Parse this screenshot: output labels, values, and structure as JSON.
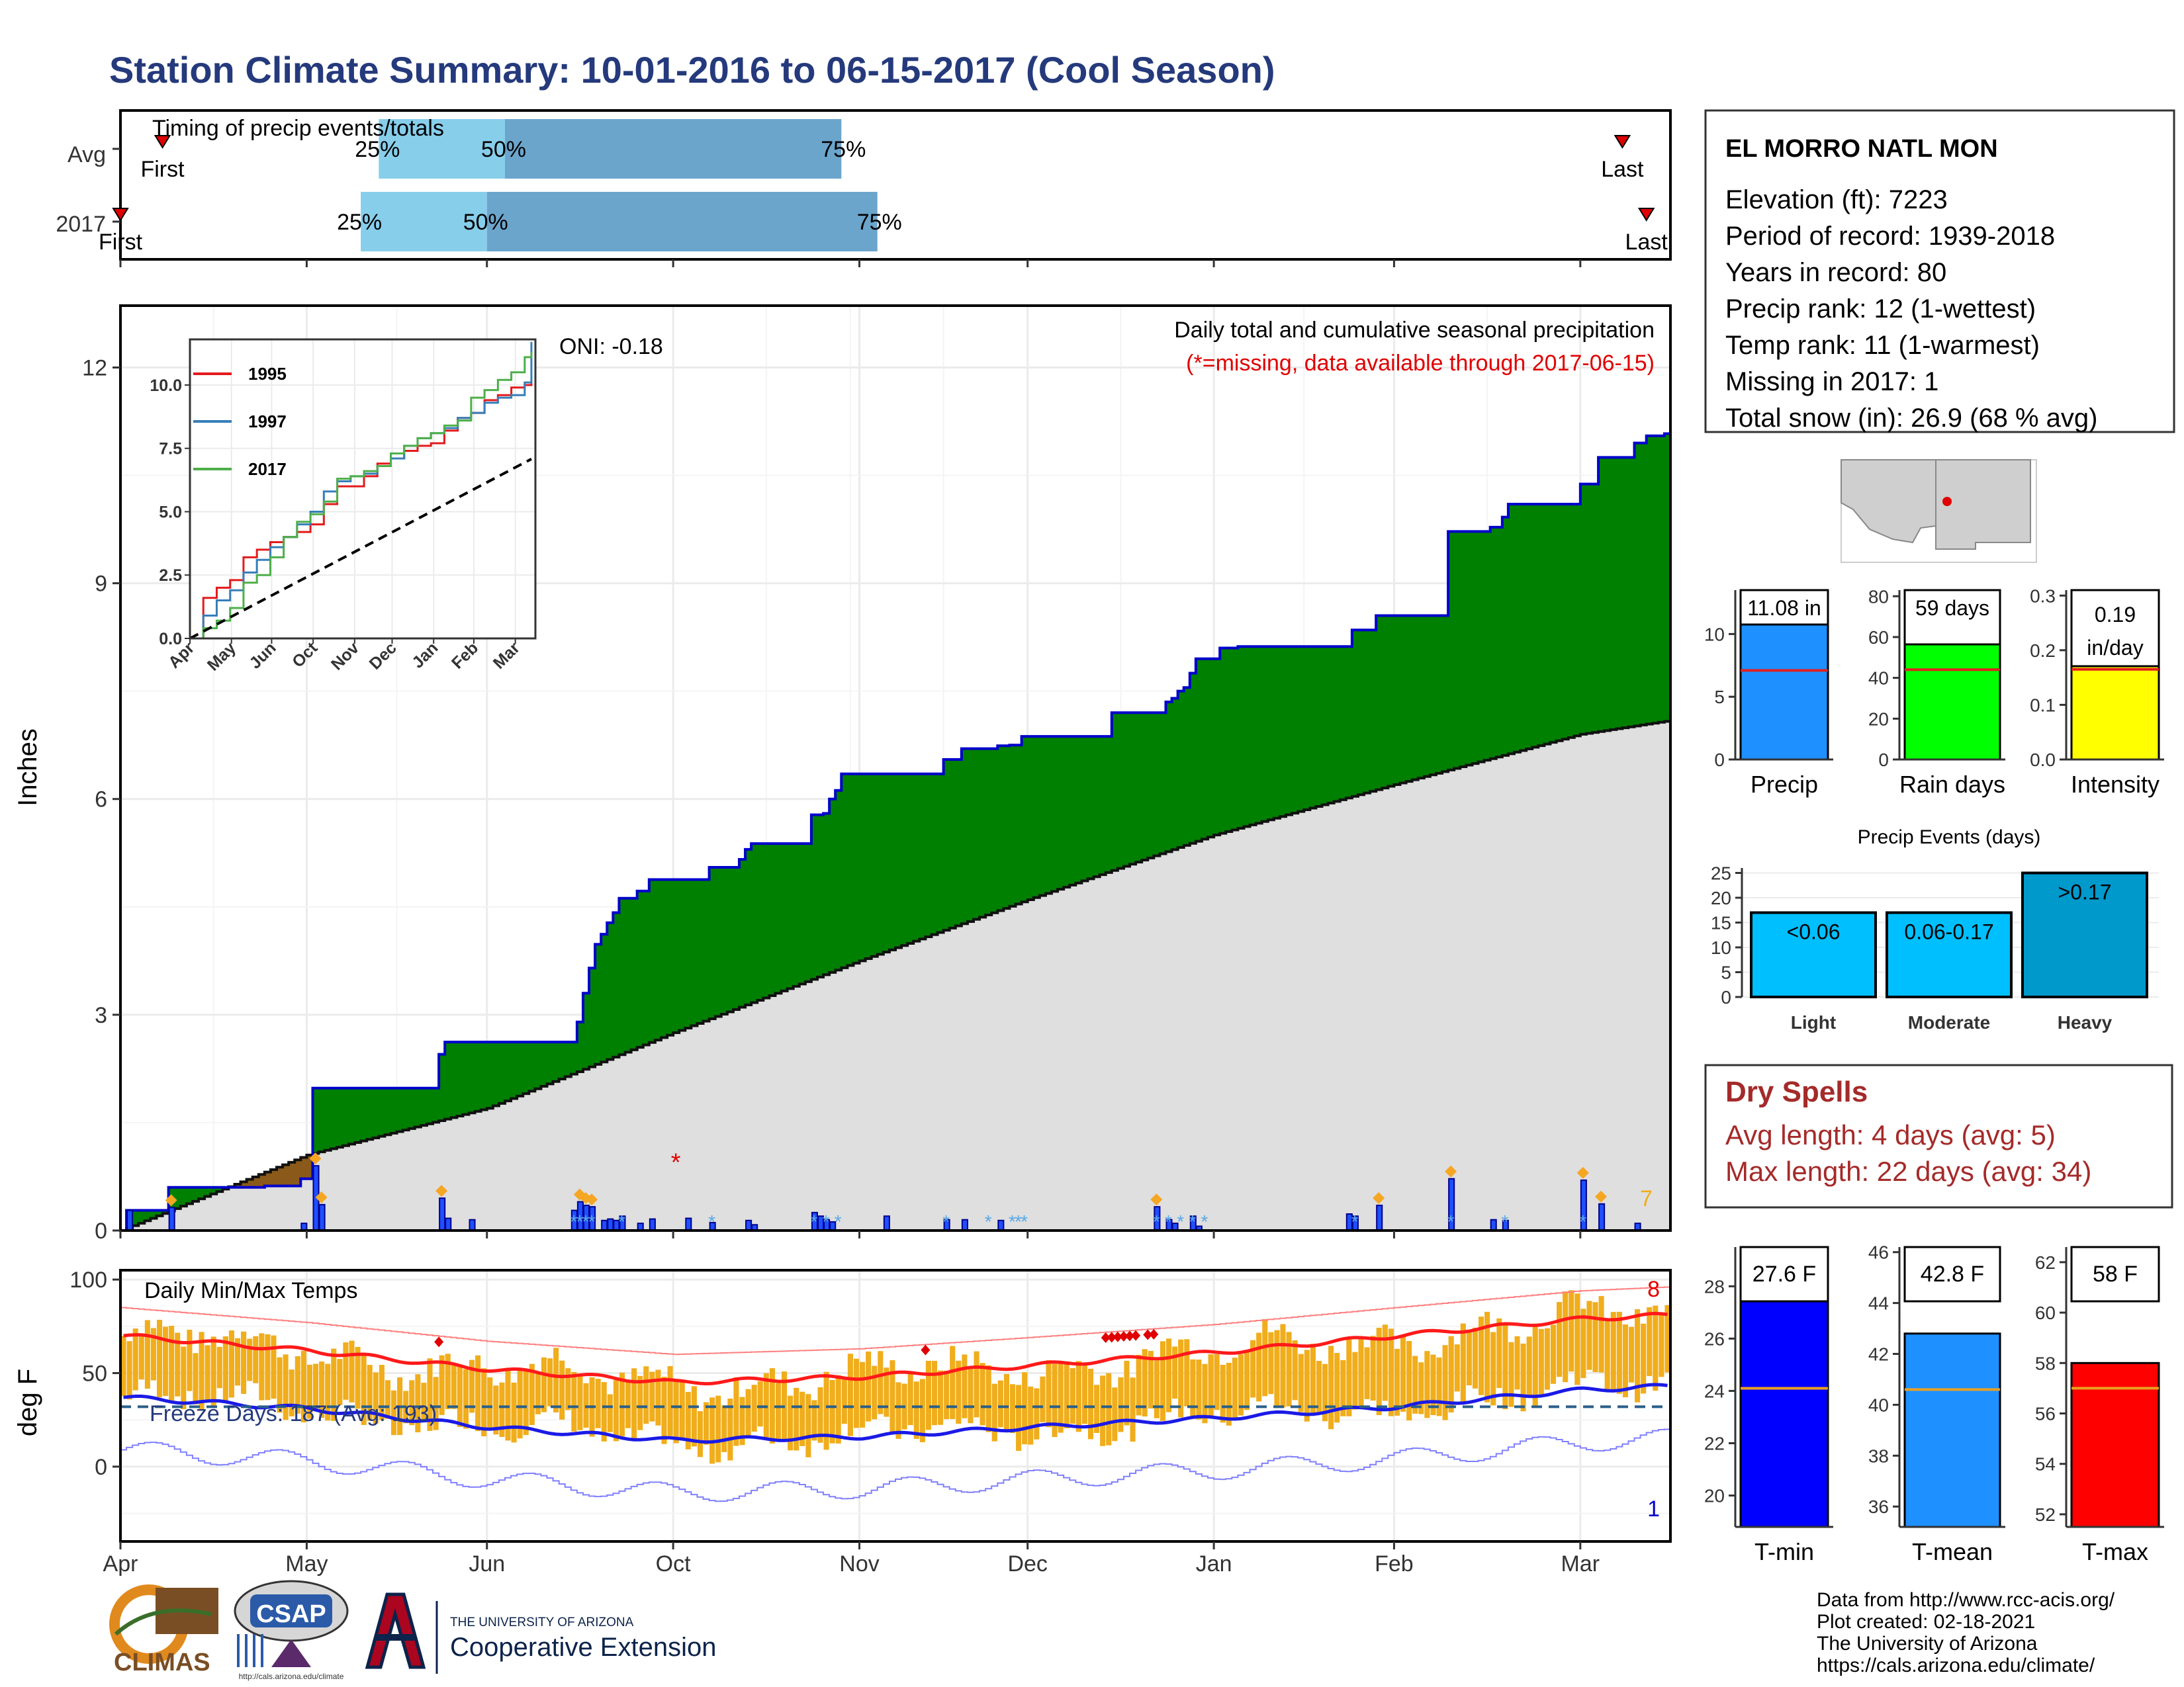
{
  "title": "Station Climate Summary: 10-01-2016 to 06-15-2017 (Cool Season)",
  "colors": {
    "title": "#253a7c",
    "green": "#008000",
    "blue": "#0000cc",
    "gray": "#dfdfdf",
    "brown": "#8b5a1a",
    "orange": "#f0ad1c",
    "dryspell": "#a52a2a",
    "lightblue": "#87ceeb",
    "midblue": "#6ba5cc"
  },
  "timing": {
    "label": "Timing of precip events/totals",
    "rows": [
      {
        "name": "Avg",
        "first_label": "First",
        "last_label": "Last",
        "first": "10-08",
        "p25": "11-13",
        "p50": "12-04",
        "p75": "01-29",
        "last": "06-08"
      },
      {
        "name": "2017",
        "first_label": "First",
        "last_label": "Last",
        "first": "10-01",
        "p25": "11-10",
        "p50": "12-01",
        "p75": "02-04",
        "last": "06-12"
      }
    ],
    "pct_labels": [
      "25%",
      "50%",
      "75%"
    ]
  },
  "precip_panel": {
    "ylabel": "Inches",
    "yticks": [
      0,
      3,
      6,
      9,
      12
    ],
    "ylim": [
      0,
      12
    ],
    "note1": "Daily total and cumulative seasonal precipitation",
    "note2": "(*=missing, data available through 2017-06-15)",
    "count_label": "7",
    "oni_label": "ONI: -0.18"
  },
  "chart_data": [
    {
      "type": "area",
      "title": "Daily total and cumulative seasonal precipitation",
      "ylabel": "Inches",
      "ylim": [
        0,
        12
      ],
      "series": [
        {
          "name": "2017",
          "x": [
            "10-01",
            "10-02",
            "10-08",
            "10-09",
            "10-25",
            "10-31",
            "11-01",
            "11-02",
            "11-22",
            "11-23",
            "11-24",
            "12-15",
            "12-16",
            "12-17",
            "12-18",
            "12-19",
            "12-20",
            "12-21",
            "12-22",
            "12-23",
            "12-26",
            "12-28",
            "12-30",
            "01-01",
            "01-03",
            "01-07",
            "01-12",
            "01-13",
            "01-14",
            "01-24",
            "01-26",
            "01-27",
            "01-28",
            "01-29",
            "02-05",
            "02-15",
            "02-18",
            "02-24",
            "02-26",
            "02-28",
            "03-15",
            "03-22",
            "03-24",
            "03-25",
            "03-26",
            "03-27",
            "03-28",
            "03-29",
            "04-02",
            "04-03",
            "04-05",
            "04-23",
            "04-24",
            "04-28",
            "05-09",
            "05-10",
            "05-12",
            "05-17",
            "05-19",
            "05-20",
            "05-31",
            "06-01",
            "06-04",
            "06-10",
            "06-12",
            "06-15"
          ],
          "values": [
            0.0,
            0.28,
            0.28,
            0.6,
            0.62,
            0.72,
            0.72,
            1.98,
            1.98,
            2.45,
            2.62,
            2.62,
            2.9,
            3.3,
            3.65,
            3.98,
            4.12,
            4.28,
            4.42,
            4.62,
            4.72,
            4.88,
            4.88,
            4.88,
            4.88,
            5.05,
            5.16,
            5.3,
            5.38,
            5.78,
            5.8,
            6.0,
            6.12,
            6.35,
            6.35,
            6.55,
            6.7,
            6.74,
            6.75,
            6.87,
            7.2,
            7.2,
            7.35,
            7.4,
            7.5,
            7.55,
            7.75,
            7.95,
            8.1,
            8.1,
            8.12,
            8.12,
            8.35,
            8.55,
            8.55,
            9.72,
            9.72,
            9.78,
            9.92,
            10.1,
            10.1,
            10.38,
            10.75,
            10.95,
            11.05,
            11.08
          ]
        },
        {
          "name": "Avg",
          "x": [
            "10-01",
            "11-01",
            "12-01",
            "01-01",
            "02-01",
            "03-01",
            "04-01",
            "05-01",
            "06-01",
            "06-15"
          ],
          "values": [
            0.0,
            1.05,
            1.7,
            2.75,
            3.75,
            4.6,
            5.5,
            6.2,
            6.9,
            7.08
          ]
        }
      ],
      "daily_events": [
        {
          "x": "10-02",
          "value": 0.28
        },
        {
          "x": "10-09",
          "value": 0.32
        },
        {
          "x": "10-31",
          "value": 0.1
        },
        {
          "x": "11-02",
          "value": 0.9
        },
        {
          "x": "11-03",
          "value": 0.36
        },
        {
          "x": "11-23",
          "value": 0.45
        },
        {
          "x": "11-24",
          "value": 0.17
        },
        {
          "x": "11-28",
          "value": 0.15
        },
        {
          "x": "12-15",
          "value": 0.28
        },
        {
          "x": "12-16",
          "value": 0.4
        },
        {
          "x": "12-17",
          "value": 0.35
        },
        {
          "x": "12-18",
          "value": 0.33
        },
        {
          "x": "12-20",
          "value": 0.14
        },
        {
          "x": "12-21",
          "value": 0.16
        },
        {
          "x": "12-22",
          "value": 0.14
        },
        {
          "x": "12-23",
          "value": 0.2
        },
        {
          "x": "12-26",
          "value": 0.1
        },
        {
          "x": "12-28",
          "value": 0.16
        },
        {
          "x": "01-03",
          "value": 0.17
        },
        {
          "x": "01-07",
          "value": 0.11
        },
        {
          "x": "01-13",
          "value": 0.14
        },
        {
          "x": "01-14",
          "value": 0.08
        },
        {
          "x": "01-24",
          "value": 0.25
        },
        {
          "x": "01-25",
          "value": 0.2
        },
        {
          "x": "01-26",
          "value": 0.15
        },
        {
          "x": "01-27",
          "value": 0.12
        },
        {
          "x": "02-05",
          "value": 0.2
        },
        {
          "x": "02-15",
          "value": 0.15
        },
        {
          "x": "02-18",
          "value": 0.15
        },
        {
          "x": "02-24",
          "value": 0.14
        },
        {
          "x": "03-22",
          "value": 0.33
        },
        {
          "x": "03-24",
          "value": 0.15
        },
        {
          "x": "03-25",
          "value": 0.1
        },
        {
          "x": "03-28",
          "value": 0.2
        },
        {
          "x": "03-29",
          "value": 0.06
        },
        {
          "x": "04-23",
          "value": 0.23
        },
        {
          "x": "04-24",
          "value": 0.2
        },
        {
          "x": "04-28",
          "value": 0.35
        },
        {
          "x": "05-10",
          "value": 0.72
        },
        {
          "x": "05-17",
          "value": 0.15
        },
        {
          "x": "05-19",
          "value": 0.14
        },
        {
          "x": "06-01",
          "value": 0.7
        },
        {
          "x": "06-04",
          "value": 0.37
        },
        {
          "x": "06-10",
          "value": 0.1
        }
      ],
      "missing": [
        {
          "x": "01-01",
          "value": 1.0
        }
      ]
    },
    {
      "type": "line",
      "title": "",
      "xlabels": [
        "Oct",
        "Nov",
        "Dec",
        "Jan",
        "Feb",
        "Mar",
        "Apr",
        "May",
        "Jun"
      ],
      "yticks": [
        "0.0",
        "2.5",
        "5.0",
        "7.5",
        "10.0"
      ],
      "ylim": [
        0,
        11.5
      ],
      "series": [
        {
          "name": "1995",
          "x": [
            0,
            10,
            20,
            30,
            40,
            50,
            60,
            70,
            80,
            90,
            100,
            110,
            120,
            130,
            140,
            150,
            160,
            170,
            180,
            190,
            200,
            210,
            220,
            230,
            240,
            250,
            255
          ],
          "values": [
            0.0,
            1.6,
            2.0,
            2.3,
            3.2,
            3.5,
            3.8,
            4.0,
            4.2,
            4.5,
            5.3,
            6.0,
            6.0,
            6.4,
            6.9,
            7.1,
            7.4,
            7.6,
            7.7,
            8.2,
            8.7,
            8.9,
            9.4,
            9.6,
            9.9,
            10.0,
            10.2
          ]
        },
        {
          "name": "1997",
          "x": [
            0,
            10,
            20,
            30,
            40,
            50,
            60,
            70,
            80,
            90,
            100,
            110,
            120,
            130,
            140,
            150,
            160,
            170,
            180,
            190,
            200,
            210,
            220,
            230,
            240,
            250,
            255
          ],
          "values": [
            0.0,
            0.9,
            1.5,
            1.9,
            2.6,
            3.1,
            3.6,
            4.0,
            4.5,
            5.0,
            5.8,
            6.2,
            6.4,
            6.5,
            6.8,
            7.1,
            7.6,
            7.9,
            8.1,
            8.3,
            8.7,
            8.9,
            9.3,
            9.5,
            9.6,
            10.1,
            11.7
          ]
        },
        {
          "name": "2017",
          "x": [
            0,
            10,
            20,
            30,
            40,
            50,
            60,
            70,
            80,
            90,
            100,
            110,
            120,
            130,
            140,
            150,
            160,
            170,
            180,
            190,
            200,
            210,
            220,
            230,
            240,
            250,
            255
          ],
          "values": [
            0.0,
            0.4,
            0.7,
            1.2,
            2.2,
            2.5,
            3.2,
            4.0,
            4.6,
            4.9,
            5.4,
            6.3,
            6.4,
            6.6,
            6.8,
            7.3,
            7.6,
            7.9,
            8.1,
            8.4,
            8.6,
            9.5,
            9.8,
            10.2,
            10.5,
            11.1,
            11.3
          ]
        },
        {
          "name": "Avg",
          "x": [
            0,
            255
          ],
          "values": [
            0.0,
            7.08
          ]
        }
      ]
    },
    {
      "type": "bar",
      "title": "Daily Min/Max Temps",
      "ylabel": "deg F",
      "yticks": [
        0,
        50,
        100
      ],
      "ylim": [
        -40,
        105
      ],
      "series": [
        {
          "name": "Tmax avg",
          "x": [
            "10-01",
            "11-01",
            "12-01",
            "01-01",
            "02-01",
            "03-01",
            "04-01",
            "05-01",
            "06-01",
            "06-15"
          ],
          "values": [
            70,
            62,
            52,
            45,
            48,
            54,
            61,
            70,
            79,
            81
          ]
        },
        {
          "name": "Tmin avg",
          "x": [
            "10-01",
            "11-01",
            "12-01",
            "01-01",
            "02-01",
            "03-01",
            "04-01",
            "05-01",
            "06-01",
            "06-15"
          ],
          "values": [
            37,
            31,
            21,
            14,
            16,
            21,
            26,
            32,
            41,
            43
          ]
        }
      ],
      "freeze_line": 32,
      "freeze_label": "Freeze Days: 187 (Avg: 193)",
      "record_high_count": "8",
      "record_low_count": "1"
    },
    {
      "type": "bar",
      "categories": [
        "Precip"
      ],
      "values": [
        11.08
      ],
      "avg": 7.1,
      "label": "11.08 in",
      "yticks": [
        0,
        5,
        10
      ],
      "ylim": [
        0,
        13.5
      ]
    },
    {
      "type": "bar",
      "categories": [
        "Rain days"
      ],
      "values": [
        59
      ],
      "avg": 44,
      "label": "59 days",
      "yticks": [
        0,
        20,
        40,
        60,
        80
      ],
      "ylim": [
        0,
        83
      ]
    },
    {
      "type": "bar",
      "categories": [
        "Intensity"
      ],
      "values": [
        0.19
      ],
      "avg": 0.165,
      "label": "0.19 in/day",
      "yticks": [
        "0.0",
        "0.1",
        "0.2",
        "0.3"
      ],
      "ylim": [
        0,
        0.31
      ]
    },
    {
      "type": "bar",
      "title": "Precip Events (days)",
      "categories": [
        "Light",
        "Moderate",
        "Heavy"
      ],
      "values": [
        17,
        17,
        25
      ],
      "labels": [
        "<0.06",
        "0.06-0.17",
        ">0.17"
      ],
      "yticks": [
        0,
        5,
        10,
        15,
        20,
        25
      ],
      "ylim": [
        0,
        26
      ]
    },
    {
      "type": "bar",
      "categories": [
        "T-min"
      ],
      "values": [
        27.6
      ],
      "avg": 24.1,
      "label": "27.6 F",
      "yticks": [
        20,
        22,
        24,
        26,
        28
      ],
      "ylim": [
        18.8,
        29.5
      ]
    },
    {
      "type": "bar",
      "categories": [
        "T-mean"
      ],
      "values": [
        42.8
      ],
      "avg": 40.6,
      "label": "42.8 F",
      "yticks": [
        36,
        38,
        40,
        42,
        44,
        46
      ],
      "ylim": [
        35.2,
        46.2
      ]
    },
    {
      "type": "bar",
      "categories": [
        "T-max"
      ],
      "values": [
        58
      ],
      "avg": 57,
      "label": "58 F",
      "yticks": [
        52,
        54,
        56,
        58,
        60,
        62
      ],
      "ylim": [
        51.5,
        62.6
      ]
    }
  ],
  "month_labels": [
    "Oct",
    "Nov",
    "Dec",
    "Jan",
    "Feb",
    "Mar",
    "Apr",
    "May",
    "Jun"
  ],
  "station": {
    "name": "EL MORRO NATL MON",
    "lines": [
      "Elevation (ft): 7223",
      "Period of record: 1939-2018",
      "Years in record: 80",
      "Precip rank: 12 (1-wettest)",
      "Temp rank: 11 (1-warmest)",
      "Missing in 2017: 1",
      "Total snow (in): 26.9 (68 % avg)"
    ]
  },
  "dry_spells": {
    "title": "Dry Spells",
    "avg": "Avg length: 4 days (avg: 5)",
    "max": "Max length: 22 days (avg: 34)"
  },
  "credits": [
    "Data from http://www.rcc-acis.org/",
    "Plot created: 02-18-2021",
    "The University of Arizona",
    "https://cals.arizona.edu/climate/"
  ],
  "logos": {
    "climas": "CLIMAS",
    "csap": "CSAP",
    "csap_url": "http://cals.arizona.edu/climate",
    "ua_small": "THE UNIVERSITY OF ARIZONA",
    "ua_big": "Cooperative Extension"
  }
}
